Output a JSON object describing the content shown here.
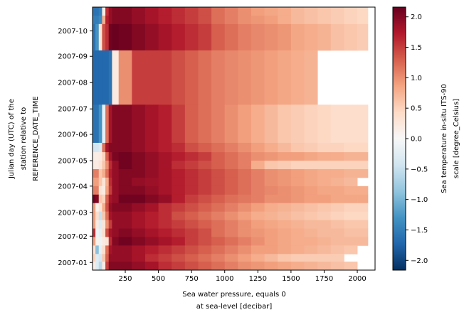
{
  "chart_data": {
    "type": "heatmap",
    "colormap": "RdBu_r",
    "colormap_stops": [
      "#053061",
      "#2166ac",
      "#4393c3",
      "#92c5de",
      "#d1e5f0",
      "#f7f7f7",
      "#fddbc7",
      "#f4a582",
      "#d6604d",
      "#b2182b",
      "#67001f"
    ],
    "vmin": -2.16,
    "vmax": 2.16,
    "xlabel": [
      "Sea water pressure, equals 0",
      "at sea-level [decibar]"
    ],
    "ylabel": [
      "Julian day (UTC) of the",
      "station relative to",
      "REFERENCE_DATE_TIME"
    ],
    "colorbar_label": [
      "Sea temperature in-situ ITS-90",
      "scale [degree_Celsius]"
    ],
    "xlim": [
      3,
      2134
    ],
    "ylim": [
      "2006-12-23",
      "2007-10-29"
    ],
    "x_ticks": [
      250,
      500,
      750,
      1000,
      1250,
      1500,
      1750,
      2000
    ],
    "x_tick_labels": [
      "250",
      "500",
      "750",
      "1000",
      "1250",
      "1500",
      "1750",
      "2000"
    ],
    "y_ticks": [
      "2007-01-01",
      "2007-02-01",
      "2007-03-01",
      "2007-04-01",
      "2007-05-01",
      "2007-06-01",
      "2007-07-01",
      "2007-08-01",
      "2007-09-01",
      "2007-10-01"
    ],
    "y_tick_labels": [
      "2007-01",
      "2007-02",
      "2007-03",
      "2007-04",
      "2007-05",
      "2007-06",
      "2007-07",
      "2007-08",
      "2007-09",
      "2007-10"
    ],
    "colorbar_ticks": [
      2.0,
      1.5,
      1.0,
      0.5,
      0.0,
      -0.5,
      -1.0,
      -1.5,
      -2.0
    ],
    "colorbar_tick_labels": [
      "2.0",
      "1.5",
      "1.0",
      "0.5",
      "0.0",
      "−0.5",
      "−1.0",
      "−1.5",
      "−2.0"
    ],
    "pressure_edges": [
      5,
      25,
      50,
      75,
      100,
      125,
      150,
      200,
      300,
      400,
      500,
      600,
      700,
      800,
      900,
      1000,
      1100,
      1200,
      1300,
      1400,
      1500,
      1600,
      1700,
      1800,
      1900,
      2000,
      2080
    ],
    "time_edges": [
      "2007-10-29",
      "2007-10-19",
      "2007-10-09",
      "2007-09-08",
      "2007-07-06",
      "2007-05-22",
      "2007-05-11",
      "2007-05-01",
      "2007-04-21",
      "2007-04-11",
      "2007-04-01",
      "2007-03-22",
      "2007-03-12",
      "2007-03-02",
      "2007-02-20",
      "2007-02-10",
      "2007-01-31",
      "2007-01-21",
      "2007-01-11",
      "2007-01-02",
      "2006-12-23"
    ],
    "values": [
      [
        -1.6,
        -1.6,
        -1.5,
        0.2,
        1.6,
        1.9,
        2.0,
        2.0,
        1.9,
        1.8,
        1.7,
        1.6,
        1.5,
        1.4,
        1.2,
        1.1,
        1.0,
        0.9,
        0.85,
        0.8,
        0.7,
        0.65,
        0.6,
        0.55,
        0.5,
        0.45
      ],
      [
        -1.5,
        -1.5,
        -1.4,
        0.8,
        1.7,
        1.9,
        2.0,
        2.0,
        1.9,
        1.8,
        1.7,
        1.6,
        1.5,
        1.4,
        1.2,
        1.1,
        1.0,
        0.95,
        0.9,
        0.8,
        0.7,
        0.65,
        0.6,
        0.55,
        0.5,
        0.45
      ],
      [
        -1.6,
        -1.3,
        0.3,
        1.4,
        1.6,
        2.1,
        2.15,
        2.1,
        2.0,
        1.9,
        1.8,
        1.7,
        1.6,
        1.5,
        1.3,
        1.2,
        1.1,
        1.05,
        1.0,
        0.95,
        0.85,
        0.8,
        0.75,
        0.65,
        0.6,
        0.55
      ],
      [
        -1.7,
        -1.7,
        -1.7,
        -1.7,
        -1.7,
        -1.6,
        0.2,
        1.0,
        1.5,
        1.5,
        1.5,
        1.4,
        1.3,
        1.2,
        1.1,
        1.05,
        1.0,
        0.95,
        0.9,
        0.85,
        0.8,
        0.75,
        null,
        null,
        null,
        null
      ],
      [
        -1.6,
        -1.6,
        -1.3,
        -0.2,
        1.2,
        1.8,
        2.0,
        2.0,
        1.9,
        1.8,
        1.7,
        1.5,
        1.3,
        1.2,
        1.1,
        1.0,
        0.9,
        0.8,
        0.7,
        0.6,
        0.55,
        0.5,
        0.45,
        0.4,
        0.4,
        0.4
      ],
      [
        -0.4,
        -0.4,
        -0.3,
        1.2,
        1.8,
        2.0,
        2.0,
        2.0,
        1.9,
        1.8,
        1.7,
        1.6,
        1.4,
        1.3,
        1.2,
        1.1,
        1.0,
        0.9,
        0.8,
        0.7,
        0.6,
        0.55,
        0.5,
        0.5,
        0.45,
        0.45
      ],
      [
        0.15,
        0.15,
        0.2,
        0.5,
        1.3,
        1.8,
        2.05,
        2.1,
        2.0,
        1.9,
        1.8,
        1.7,
        1.6,
        1.5,
        1.3,
        1.2,
        1.1,
        1.0,
        0.95,
        0.9,
        0.9,
        0.85,
        0.8,
        0.8,
        0.75,
        0.75
      ],
      [
        0.2,
        0.2,
        0.3,
        0.6,
        1.0,
        1.6,
        1.9,
        2.1,
        2.0,
        1.9,
        1.8,
        1.6,
        1.5,
        1.4,
        1.3,
        1.2,
        1.1,
        0.8,
        0.6,
        0.55,
        0.5,
        0.5,
        0.5,
        0.5,
        0.5,
        0.5
      ],
      [
        1.1,
        1.1,
        0.6,
        0.8,
        1.2,
        1.7,
        1.9,
        2.0,
        2.0,
        1.9,
        1.8,
        1.7,
        1.6,
        1.5,
        1.4,
        1.3,
        1.2,
        1.1,
        1.0,
        0.95,
        0.9,
        0.85,
        0.8,
        0.8,
        0.75,
        0.75
      ],
      [
        0.9,
        0.9,
        0.6,
        0.3,
        0.8,
        1.6,
        1.9,
        2.0,
        1.9,
        1.85,
        1.8,
        1.7,
        1.6,
        1.5,
        1.4,
        1.3,
        1.2,
        1.1,
        1.0,
        0.95,
        0.9,
        0.85,
        0.8,
        0.75,
        0.7,
        null
      ],
      [
        1.1,
        1.1,
        0.3,
        0.2,
        0.9,
        1.5,
        1.9,
        2.0,
        2.0,
        1.9,
        1.8,
        1.7,
        1.6,
        1.5,
        1.4,
        1.3,
        1.2,
        1.1,
        1.05,
        1.0,
        0.95,
        0.9,
        0.85,
        0.85,
        0.8,
        0.8
      ],
      [
        2.1,
        2.0,
        0.6,
        0.5,
        1.3,
        1.8,
        1.9,
        2.1,
        2.1,
        2.0,
        1.9,
        1.7,
        1.5,
        1.4,
        1.3,
        1.2,
        1.15,
        1.1,
        1.0,
        1.0,
        0.95,
        0.9,
        0.9,
        0.85,
        0.85,
        0.85
      ],
      [
        0.9,
        0.1,
        0.3,
        0.8,
        1.4,
        1.9,
        2.0,
        2.0,
        1.9,
        1.8,
        1.6,
        1.5,
        1.4,
        1.3,
        1.2,
        1.1,
        1.0,
        0.9,
        0.8,
        0.75,
        0.7,
        0.65,
        0.6,
        0.55,
        0.5,
        0.5
      ],
      [
        0.9,
        0.4,
        -0.5,
        0.6,
        1.2,
        1.8,
        1.9,
        1.9,
        1.8,
        1.7,
        1.6,
        1.4,
        1.3,
        1.2,
        1.1,
        1.0,
        0.9,
        0.8,
        0.75,
        0.7,
        0.65,
        0.6,
        0.55,
        0.5,
        0.45,
        0.45
      ],
      [
        0.9,
        0.2,
        -0.3,
        0.3,
        1.0,
        1.5,
        1.9,
        1.9,
        1.8,
        1.7,
        1.6,
        1.5,
        1.4,
        1.3,
        1.2,
        1.1,
        1.0,
        0.9,
        0.85,
        0.8,
        0.75,
        0.7,
        0.7,
        0.65,
        0.6,
        0.6
      ],
      [
        1.6,
        -0.1,
        -0.2,
        0.4,
        1.4,
        1.8,
        1.9,
        2.0,
        1.9,
        1.8,
        1.7,
        1.6,
        1.5,
        1.4,
        1.2,
        1.1,
        1.0,
        0.95,
        0.9,
        0.85,
        0.8,
        0.75,
        0.7,
        0.7,
        0.65,
        0.65
      ],
      [
        0.9,
        0.1,
        -0.1,
        0.2,
        0.3,
        1.6,
        2.0,
        2.1,
        2.0,
        1.9,
        1.8,
        1.7,
        1.5,
        1.4,
        1.3,
        1.2,
        1.1,
        1.0,
        0.9,
        0.85,
        0.8,
        0.8,
        0.75,
        0.7,
        0.7,
        0.7
      ],
      [
        0.3,
        -0.9,
        -0.2,
        0.4,
        1.2,
        1.8,
        1.9,
        1.9,
        1.8,
        1.7,
        1.6,
        1.5,
        1.4,
        1.3,
        1.2,
        1.1,
        1.0,
        0.9,
        0.9,
        0.85,
        0.8,
        0.75,
        0.7,
        0.65,
        0.6,
        null
      ],
      [
        0.5,
        -0.3,
        -0.4,
        0.6,
        1.3,
        1.9,
        1.9,
        1.9,
        1.8,
        1.6,
        1.5,
        1.4,
        1.3,
        1.2,
        1.1,
        1.0,
        0.9,
        0.8,
        0.7,
        0.6,
        0.55,
        0.55,
        0.55,
        0.55,
        null,
        null
      ],
      [
        0.15,
        -0.3,
        -0.6,
        0.2,
        1.5,
        2.0,
        2.0,
        2.0,
        1.9,
        1.8,
        1.6,
        1.5,
        1.4,
        1.3,
        1.2,
        1.1,
        1.0,
        0.95,
        0.9,
        0.85,
        0.8,
        0.75,
        0.7,
        0.65,
        0.6,
        null
      ]
    ]
  }
}
